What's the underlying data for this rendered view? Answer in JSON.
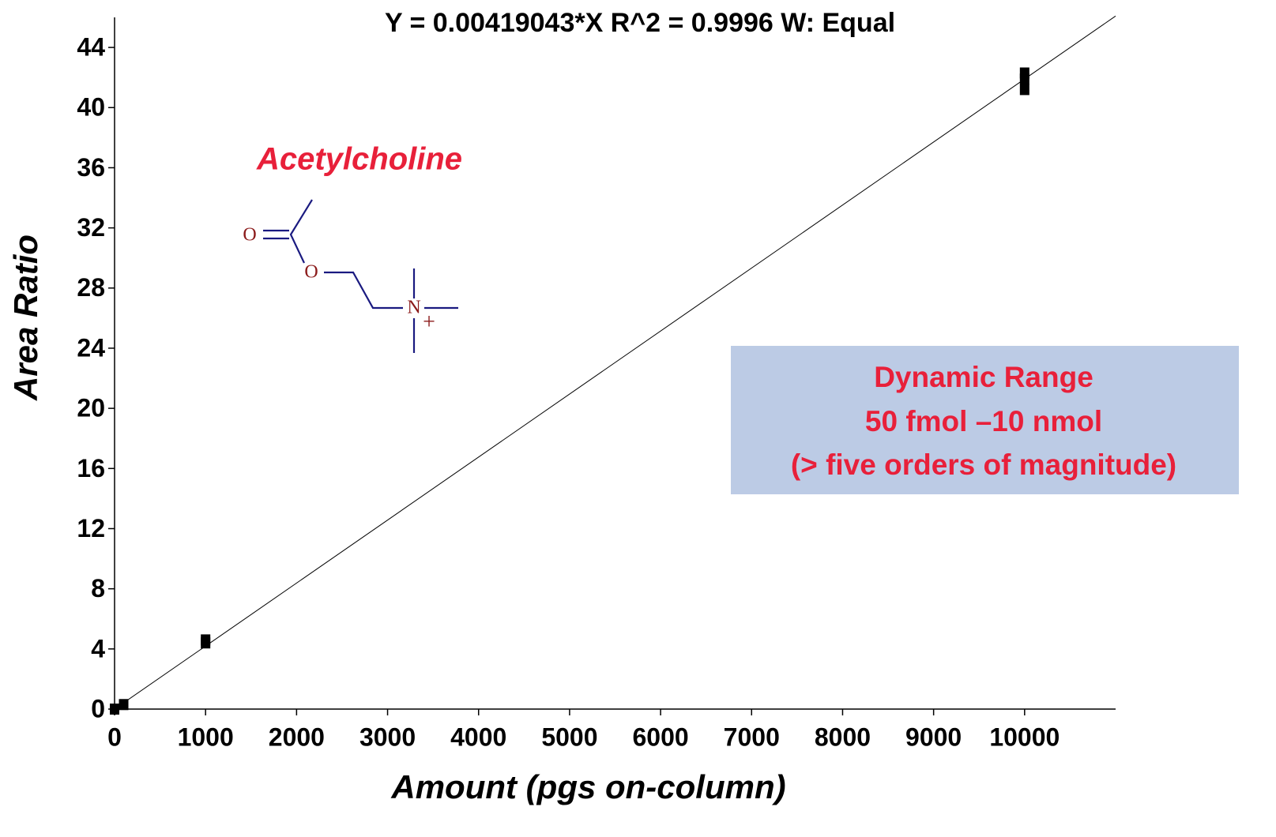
{
  "chart_data": {
    "type": "scatter",
    "title": "Y = 0.00419043*X   R^2 = 0.9996   W: Equal",
    "x_label": "Amount (pgs on-column)",
    "y_label": "Area Ratio",
    "compound": "Acetylcholine",
    "structure": {
      "atoms": [
        "O",
        "O",
        "N",
        "+"
      ]
    },
    "note": [
      "Dynamic Range",
      "50 fmol –10 nmol",
      "(> five orders of magnitude)"
    ],
    "x": [
      0,
      100,
      1000,
      1000,
      10000,
      10000,
      10000
    ],
    "values": [
      0,
      0.3,
      4.6,
      4.4,
      42.3,
      41.2,
      41.9
    ],
    "color": "#000000",
    "fit": {
      "x": [
        0,
        11000
      ],
      "values": [
        0,
        46.09
      ]
    },
    "xlim": [
      0,
      11000
    ],
    "ylim": [
      0,
      46
    ],
    "xticks": [
      0,
      1000,
      2000,
      3000,
      4000,
      5000,
      6000,
      7000,
      8000,
      9000,
      10000
    ],
    "yticks": [
      0,
      4,
      8,
      12,
      16,
      20,
      24,
      28,
      32,
      36,
      40,
      44
    ],
    "grid": false
  }
}
